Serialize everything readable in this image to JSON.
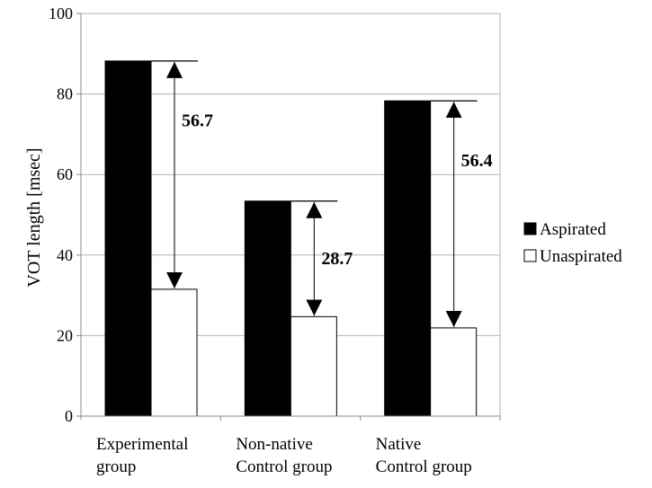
{
  "chart_data": {
    "type": "bar",
    "title": "",
    "xlabel": "",
    "ylabel": "VOT length [msec]",
    "ylim": [
      0,
      100
    ],
    "yticks": [
      0,
      20,
      40,
      60,
      80,
      100
    ],
    "grid": true,
    "legend_position": "right",
    "categories": [
      [
        "Experimental",
        "group"
      ],
      [
        "Non-native",
        "Control group"
      ],
      [
        "Native",
        "Control group"
      ]
    ],
    "series": [
      {
        "name": "Aspirated",
        "values": [
          88.2,
          53.4,
          78.3
        ],
        "color": "#000000"
      },
      {
        "name": "Unaspirated",
        "values": [
          31.5,
          24.7,
          21.9
        ],
        "color": "#ffffff"
      }
    ],
    "annotations": [
      {
        "category": 0,
        "label": "56.7"
      },
      {
        "category": 1,
        "label": "28.7"
      },
      {
        "category": 2,
        "label": "56.4"
      }
    ]
  }
}
